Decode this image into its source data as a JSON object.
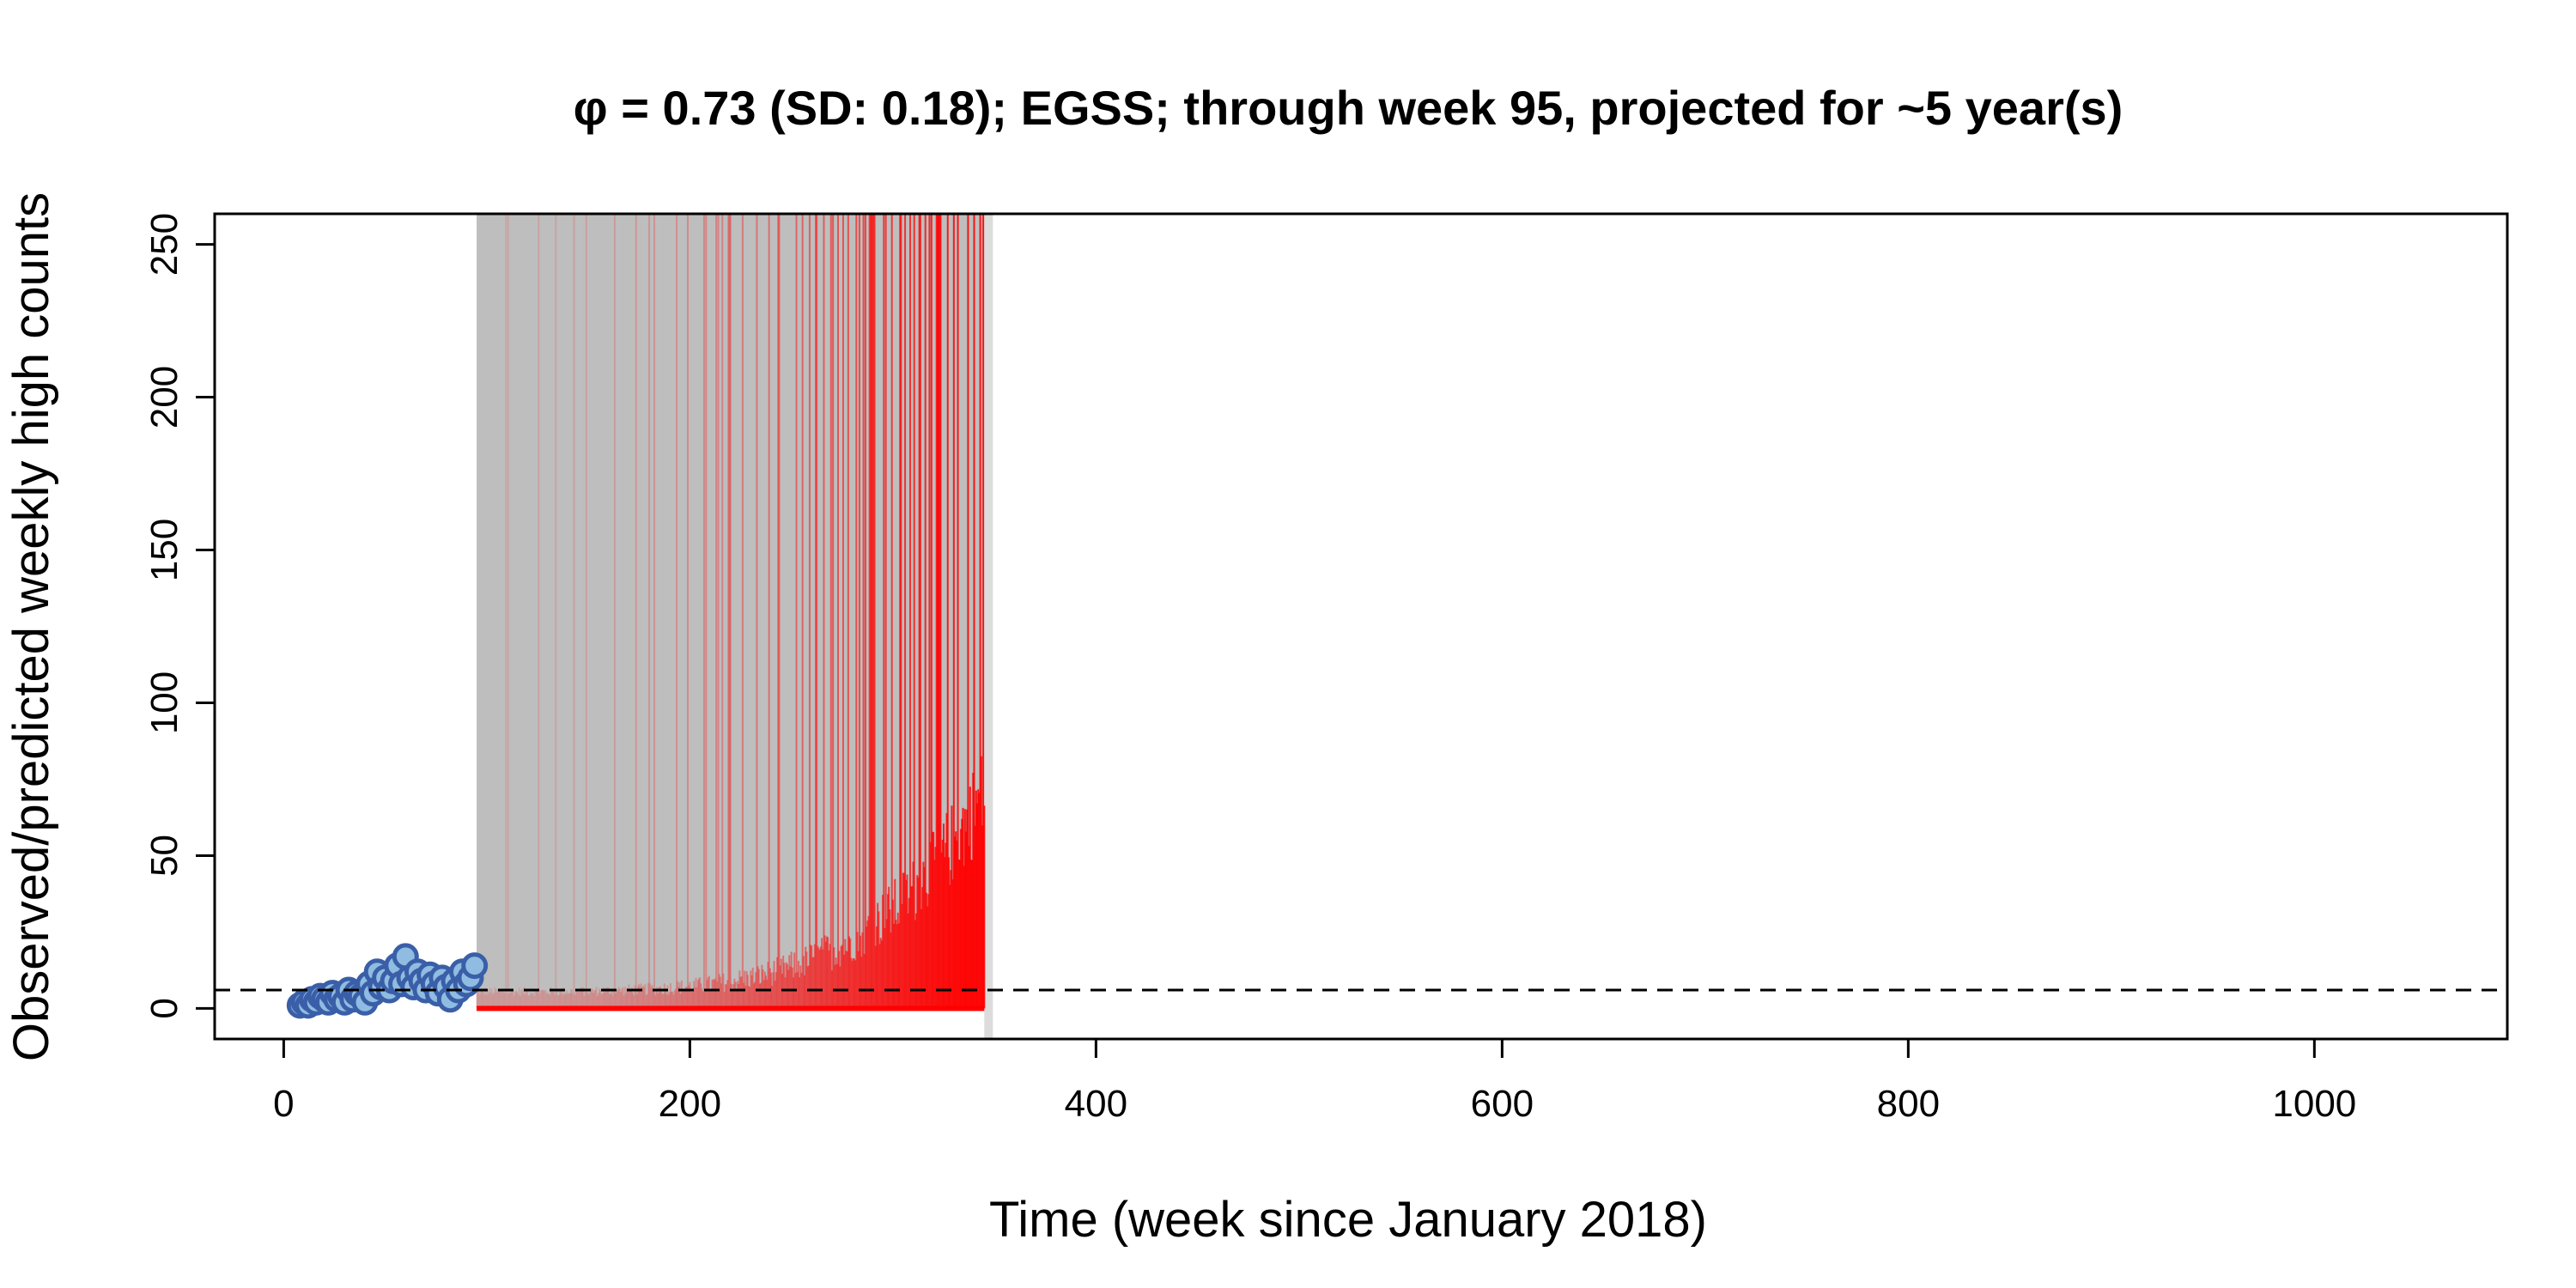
{
  "chart_data": {
    "type": "line",
    "title": "φ = 0.73 (SD: 0.18); EGSS; through week 95, projected for ~5 year(s)",
    "xlabel": "Time (week since January 2018)",
    "ylabel": "Observed/predicted weekly high counts",
    "xlim": [
      -34,
      1095
    ],
    "ylim": [
      -10,
      260
    ],
    "x_ticks": [
      0,
      200,
      400,
      600,
      800,
      1000
    ],
    "y_ticks": [
      0,
      50,
      100,
      150,
      200,
      250
    ],
    "x_tick_labels": [
      "0",
      "200",
      "400",
      "600",
      "800",
      "1000"
    ],
    "y_tick_labels": [
      "0",
      "50",
      "100",
      "150",
      "200",
      "250"
    ],
    "grid": false,
    "threshold": 6,
    "observed_end_week": 95,
    "projection_start_week": 95,
    "projection_end_week": 345,
    "colors": {
      "observed_outline": "#3a5fa8",
      "observed_fill": "#8fbce0",
      "projection_gray": "#bebebe",
      "projection_red": "#ff0000",
      "threshold_line": "#000000"
    },
    "series": [
      {
        "type": "scatter",
        "x": [
          8,
          10,
          12,
          14,
          16,
          18,
          20,
          22,
          24,
          26,
          28,
          30,
          32,
          34,
          36,
          38,
          40,
          42,
          44,
          46,
          48,
          50,
          52,
          54,
          56,
          58,
          60,
          62,
          64,
          66,
          68,
          70,
          72,
          74,
          76,
          78,
          80,
          82,
          84,
          86,
          88,
          90,
          92,
          94
        ],
        "values": [
          1,
          2,
          1,
          3,
          2,
          4,
          3,
          2,
          5,
          3,
          4,
          2,
          6,
          3,
          5,
          4,
          2,
          8,
          5,
          12,
          7,
          10,
          6,
          9,
          14,
          8,
          17,
          10,
          7,
          12,
          9,
          6,
          11,
          8,
          5,
          10,
          7,
          3,
          9,
          6,
          12,
          8,
          10,
          14
        ]
      }
    ]
  }
}
